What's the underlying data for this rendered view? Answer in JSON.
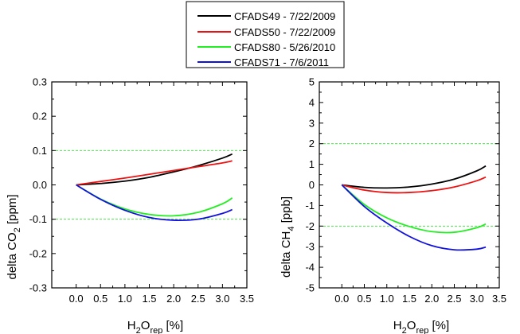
{
  "legend": {
    "entries": [
      {
        "label": "CFADS49 - 7/22/2009",
        "color": "#000000"
      },
      {
        "label": "CFADS50 - 7/22/2009",
        "color": "#ee1111"
      },
      {
        "label": "CFADS80 - 5/26/2010",
        "color": "#22ee22"
      },
      {
        "label": "CFADS71 - 7/6/2011",
        "color": "#1111dd"
      }
    ]
  },
  "chart_data": [
    {
      "type": "line",
      "title": "",
      "xlabel": "H2Orep [%]",
      "ylabel": "delta CO2 [ppm]",
      "xlim": [
        -0.5,
        3.5
      ],
      "ylim": [
        -0.3,
        0.3
      ],
      "xticks": [
        "0.0",
        "0.5",
        "1.0",
        "1.5",
        "2.0",
        "2.5",
        "3.0",
        "3.5"
      ],
      "yticks": [
        "-0.3",
        "-0.2",
        "-0.1",
        "0.0",
        "0.1",
        "0.2",
        "0.3"
      ],
      "reference_lines": [
        0.1,
        -0.1
      ],
      "grid": false,
      "series": [
        {
          "name": "CFADS49 - 7/22/2009",
          "color": "#000000",
          "x": [
            0,
            0.5,
            1.0,
            1.5,
            2.0,
            2.5,
            3.0,
            3.2
          ],
          "y": [
            0,
            0.004,
            0.011,
            0.022,
            0.038,
            0.056,
            0.078,
            0.09
          ]
        },
        {
          "name": "CFADS50 - 7/22/2009",
          "color": "#ee1111",
          "x": [
            0,
            0.5,
            1.0,
            1.5,
            2.0,
            2.5,
            3.0,
            3.2
          ],
          "y": [
            0,
            0.01,
            0.02,
            0.031,
            0.042,
            0.053,
            0.064,
            0.07
          ]
        },
        {
          "name": "CFADS80 - 5/26/2010",
          "color": "#22ee22",
          "x": [
            0,
            0.5,
            1.0,
            1.5,
            2.0,
            2.5,
            3.0,
            3.2
          ],
          "y": [
            0,
            -0.041,
            -0.07,
            -0.086,
            -0.09,
            -0.08,
            -0.055,
            -0.038
          ]
        },
        {
          "name": "CFADS71 - 7/6/2011",
          "color": "#1111dd",
          "x": [
            0,
            0.5,
            1.0,
            1.5,
            2.0,
            2.5,
            3.0,
            3.2
          ],
          "y": [
            0,
            -0.042,
            -0.074,
            -0.095,
            -0.103,
            -0.1,
            -0.083,
            -0.072
          ]
        }
      ]
    },
    {
      "type": "line",
      "title": "",
      "xlabel": "H2Orep [%]",
      "ylabel": "delta CH4 [ppb]",
      "xlim": [
        -0.5,
        3.5
      ],
      "ylim": [
        -5,
        5
      ],
      "xticks": [
        "0.0",
        "0.5",
        "1.0",
        "1.5",
        "2.0",
        "2.5",
        "3.0",
        "3.5"
      ],
      "yticks": [
        "-5",
        "-4",
        "-3",
        "-2",
        "-1",
        "0",
        "1",
        "2",
        "3",
        "4",
        "5"
      ],
      "reference_lines": [
        2,
        -2
      ],
      "grid": false,
      "series": [
        {
          "name": "CFADS49 - 7/22/2009",
          "color": "#000000",
          "x": [
            0,
            0.5,
            1.0,
            1.5,
            2.0,
            2.5,
            3.0,
            3.2
          ],
          "y": [
            0,
            -0.12,
            -0.15,
            -0.1,
            0.04,
            0.28,
            0.68,
            0.92
          ]
        },
        {
          "name": "CFADS50 - 7/22/2009",
          "color": "#ee1111",
          "x": [
            0,
            0.5,
            1.0,
            1.5,
            2.0,
            2.5,
            3.0,
            3.2
          ],
          "y": [
            0,
            -0.25,
            -0.37,
            -0.37,
            -0.28,
            -0.1,
            0.2,
            0.38
          ]
        },
        {
          "name": "CFADS80 - 5/26/2010",
          "color": "#22ee22",
          "x": [
            0,
            0.5,
            1.0,
            1.5,
            2.0,
            2.5,
            3.0,
            3.2
          ],
          "y": [
            0,
            -0.95,
            -1.6,
            -2.02,
            -2.27,
            -2.3,
            -2.08,
            -1.9
          ]
        },
        {
          "name": "CFADS71 - 7/6/2011",
          "color": "#1111dd",
          "x": [
            0,
            0.5,
            1.0,
            1.5,
            2.0,
            2.5,
            3.0,
            3.2
          ],
          "y": [
            0,
            -1.05,
            -1.85,
            -2.5,
            -2.95,
            -3.15,
            -3.12,
            -3.02
          ]
        }
      ]
    }
  ]
}
